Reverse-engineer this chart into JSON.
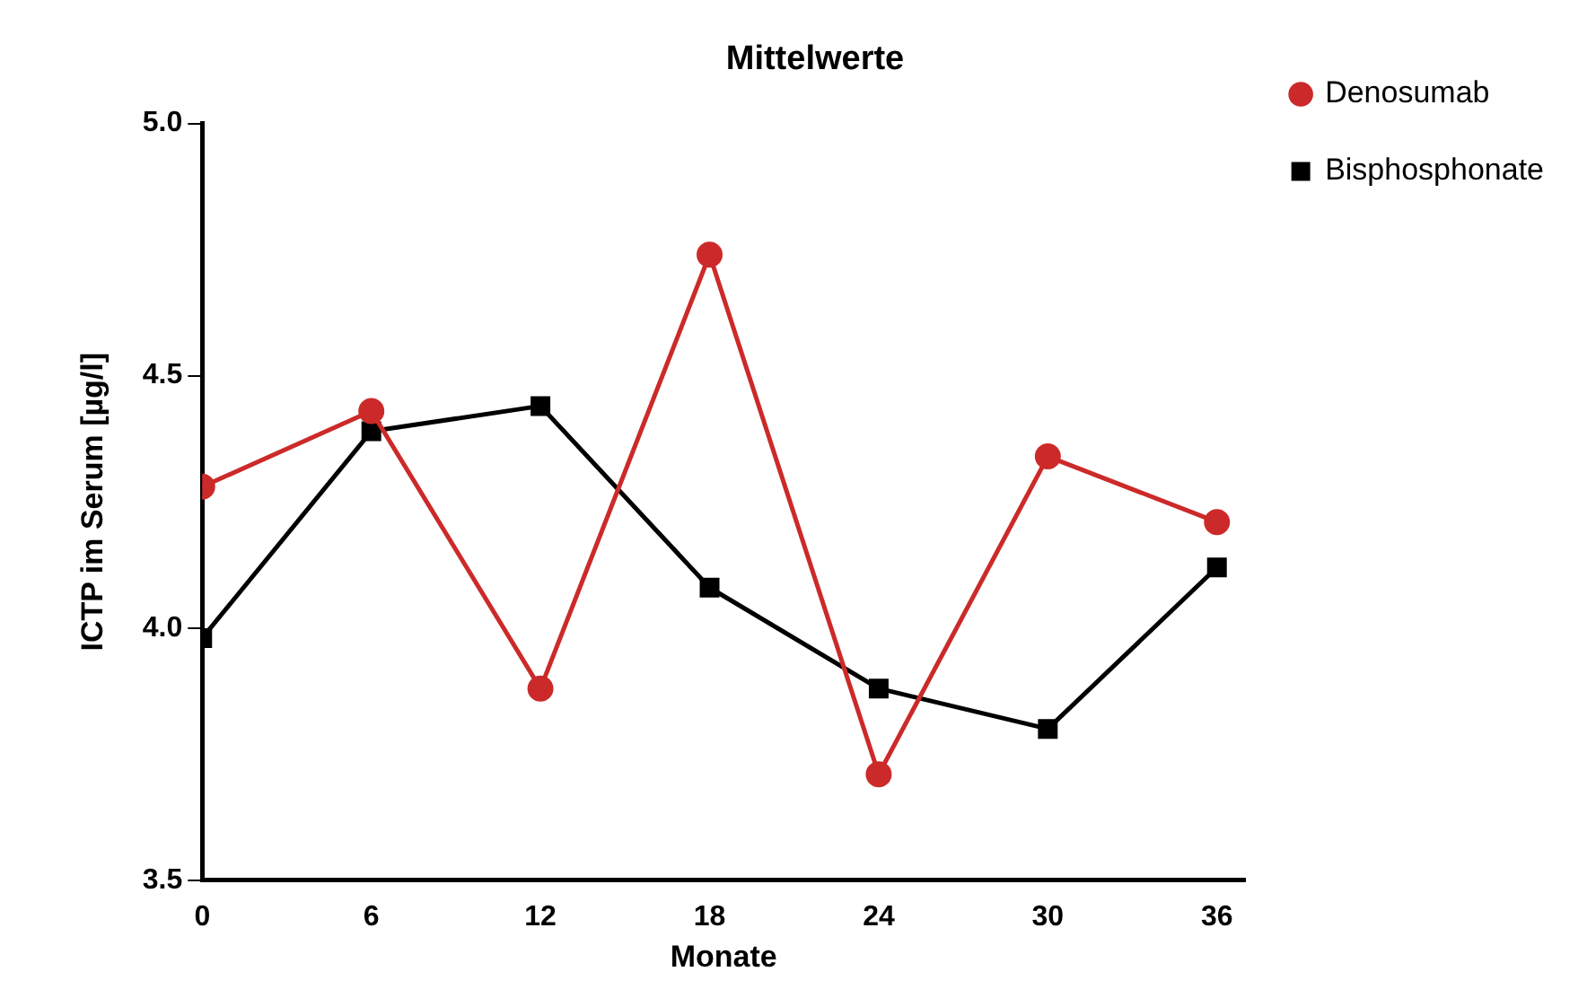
{
  "chart_data": {
    "type": "line",
    "title": "Mittelwerte",
    "xlabel": "Monate",
    "ylabel": "ICTP im Serum [µg/l]",
    "x": [
      0,
      6,
      12,
      18,
      24,
      30,
      36
    ],
    "series": [
      {
        "name": "Denosumab",
        "color": "#cc2a2a",
        "marker": "circle",
        "values": [
          4.28,
          4.43,
          3.88,
          4.74,
          3.71,
          4.34,
          4.21
        ]
      },
      {
        "name": "Bisphosphonate",
        "color": "#000000",
        "marker": "square",
        "values": [
          3.98,
          4.39,
          4.44,
          4.08,
          3.88,
          3.8,
          4.12
        ]
      }
    ],
    "xlim": [
      0,
      37
    ],
    "xticks": [
      0,
      6,
      12,
      18,
      24,
      30,
      36
    ],
    "ylim": [
      3.5,
      5.0
    ],
    "yticks": [
      {
        "value": 3.5,
        "label": "3.5"
      },
      {
        "value": 4.0,
        "label": "4.0"
      },
      {
        "value": 4.5,
        "label": "4.5"
      },
      {
        "value": 5.0,
        "label": "5.0"
      }
    ],
    "grid": false,
    "legend": "top right",
    "line_style": "solid"
  }
}
